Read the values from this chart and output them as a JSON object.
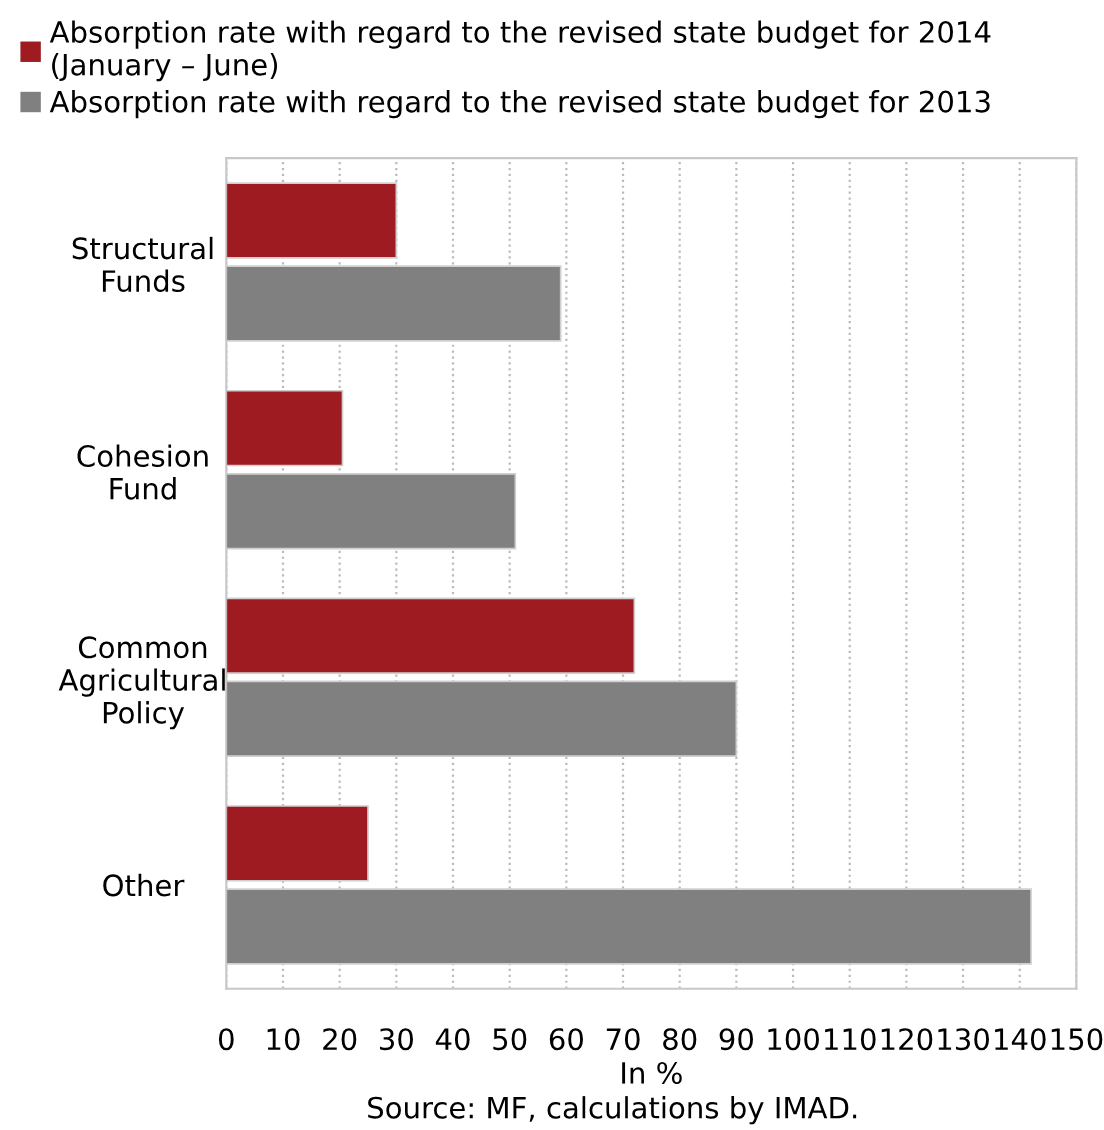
{
  "chart_data": {
    "type": "bar",
    "orientation": "horizontal",
    "xlabel": "In %",
    "categories": [
      "Structural\nFunds",
      "Cohesion\nFund",
      "Common\nAgricultural\nPolicy",
      "Other"
    ],
    "series": [
      {
        "name": "Absorption rate with regard to the revised state budget for 2014\n(January – June)",
        "color": "#9e1b22",
        "values": [
          30,
          20.5,
          72,
          25
        ]
      },
      {
        "name": "Absorption rate with regard to the revised state budget for 2013",
        "color": "#808080",
        "values": [
          59,
          51,
          90,
          142
        ]
      }
    ],
    "xlim": [
      0,
      150
    ],
    "xticks": [
      0,
      10,
      20,
      30,
      40,
      50,
      60,
      70,
      80,
      90,
      100,
      110,
      120,
      130,
      140,
      150
    ],
    "grid": "x",
    "legend": "top",
    "annotations": [
      "Source: MF, calculations by IMAD."
    ]
  }
}
